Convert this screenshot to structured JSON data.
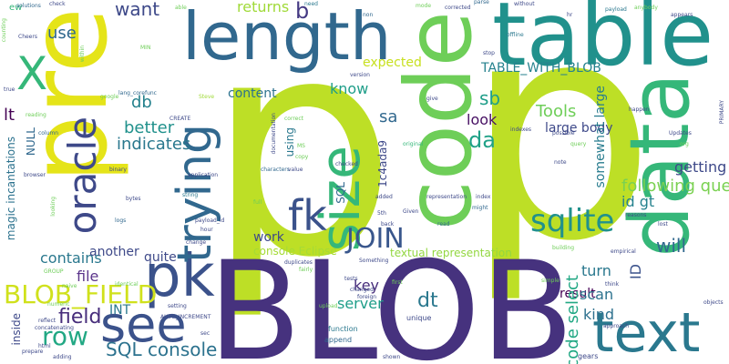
{
  "words": [
    {
      "text": "p",
      "color": "#bddf26"
    },
    {
      "text": "p",
      "color": "#bddf26"
    },
    {
      "text": "BLOB",
      "color": "#46327e"
    },
    {
      "text": "pre",
      "color": "#e5e419"
    },
    {
      "text": "table",
      "color": "#21918c"
    },
    {
      "text": "code",
      "color": "#6ece58"
    },
    {
      "text": "length",
      "color": "#31688e"
    },
    {
      "text": "data",
      "color": "#35b779"
    },
    {
      "text": "text",
      "color": "#2a788e"
    },
    {
      "text": "see",
      "color": "#3b528b"
    },
    {
      "text": "pk",
      "color": "#3b528b"
    },
    {
      "text": "size",
      "color": "#35b779"
    },
    {
      "text": "oracle",
      "color": "#3e4989"
    },
    {
      "text": "trying",
      "color": "#31688e"
    },
    {
      "text": "X",
      "color": "#35b779"
    },
    {
      "text": "fk",
      "color": "#3b528b"
    },
    {
      "text": "sqlite",
      "color": "#21918c"
    },
    {
      "text": "JOIN",
      "color": "#39568c"
    },
    {
      "text": "BLOB_FIELD",
      "color": "#d0e11c"
    },
    {
      "text": "row",
      "color": "#22a884"
    },
    {
      "text": "field",
      "color": "#472d7b"
    },
    {
      "text": "SQL console",
      "color": "#2c728e"
    },
    {
      "text": "want",
      "color": "#3e4989"
    },
    {
      "text": "b",
      "color": "#443983"
    },
    {
      "text": "use",
      "color": "#31688e"
    },
    {
      "text": "db",
      "color": "#26828e"
    },
    {
      "text": "better",
      "color": "#21918c"
    },
    {
      "text": "indicates",
      "color": "#2a788e"
    },
    {
      "text": "content",
      "color": "#2c728e"
    },
    {
      "text": "returns",
      "color": "#a0da39"
    },
    {
      "text": "expected",
      "color": "#c8e020"
    },
    {
      "text": "TABLE_WITH_BLOB",
      "color": "#26828e"
    },
    {
      "text": "know",
      "color": "#1f9e89"
    },
    {
      "text": "sa",
      "color": "#31688e"
    },
    {
      "text": "sb",
      "color": "#1f9e89"
    },
    {
      "text": "da",
      "color": "#1fa187"
    },
    {
      "text": "look",
      "color": "#471063"
    },
    {
      "text": "Tools",
      "color": "#6ece58"
    },
    {
      "text": "large body",
      "color": "#3e4989"
    },
    {
      "text": "somewhat large",
      "color": "#287c8e"
    },
    {
      "text": "getting",
      "color": "#3e4989"
    },
    {
      "text": "following query",
      "color": "#7ad151"
    },
    {
      "text": "id gt",
      "color": "#26828e"
    },
    {
      "text": "will",
      "color": "#31688e"
    },
    {
      "text": "ID",
      "color": "#3b528b"
    },
    {
      "text": "turn",
      "color": "#2a788e"
    },
    {
      "text": "result",
      "color": "#440154"
    },
    {
      "text": "kind",
      "color": "#2d708e"
    },
    {
      "text": "scan",
      "color": "#2c728e"
    },
    {
      "text": "code select",
      "color": "#22a884"
    },
    {
      "text": "dt",
      "color": "#2a788e"
    },
    {
      "text": "server",
      "color": "#1f9e89"
    },
    {
      "text": "key",
      "color": "#472d7b"
    },
    {
      "text": "work",
      "color": "#3e4989"
    },
    {
      "text": "console Eclipse",
      "color": "#a5db36"
    },
    {
      "text": "textual representation",
      "color": "#93d741"
    },
    {
      "text": "contains",
      "color": "#2a788e"
    },
    {
      "text": "another",
      "color": "#3e4989"
    },
    {
      "text": "quite",
      "color": "#3e4989"
    },
    {
      "text": "file",
      "color": "#5b358b"
    },
    {
      "text": "INT",
      "color": "#2a788e"
    },
    {
      "text": "lt",
      "color": "#440154"
    },
    {
      "text": "NULL",
      "color": "#31688e"
    },
    {
      "text": "magic incantations",
      "color": "#2c728e"
    },
    {
      "text": "inside",
      "color": "#3e4989"
    },
    {
      "text": "SQL",
      "color": "#31688e"
    },
    {
      "text": "using",
      "color": "#2a788e"
    },
    {
      "text": "1c4ada9",
      "color": "#3e4989"
    },
    {
      "text": "ew",
      "color": "#35b779"
    },
    {
      "text": "counting",
      "color": "#6ece58"
    },
    {
      "text": "solutions",
      "color": "#31688e"
    },
    {
      "text": "check",
      "color": "#3e4989"
    },
    {
      "text": "able",
      "color": "#6ece58"
    },
    {
      "text": "need",
      "color": "#2a788e"
    },
    {
      "text": "non",
      "color": "#31688e"
    },
    {
      "text": "mode",
      "color": "#6ece58"
    },
    {
      "text": "corrected",
      "color": "#3e4989"
    },
    {
      "text": "parse",
      "color": "#31688e"
    },
    {
      "text": "without",
      "color": "#3e4989"
    },
    {
      "text": "payload",
      "color": "#2a788e"
    },
    {
      "text": "hr",
      "color": "#3e4989"
    },
    {
      "text": "offline",
      "color": "#2a788e"
    },
    {
      "text": "stop",
      "color": "#3e4989"
    },
    {
      "text": "Cheers",
      "color": "#3e4989"
    },
    {
      "text": "MIN",
      "color": "#6ece58"
    },
    {
      "text": "lang_corefunc",
      "color": "#31688e"
    },
    {
      "text": "Steve",
      "color": "#a0da39"
    },
    {
      "text": "CREATE",
      "color": "#3e4989"
    },
    {
      "text": "reading",
      "color": "#6ece58"
    },
    {
      "text": "column",
      "color": "#31688e"
    },
    {
      "text": "binary",
      "color": "#3e4989"
    },
    {
      "text": "application",
      "color": "#3e4989"
    },
    {
      "text": "string",
      "color": "#2a788e"
    },
    {
      "text": "bytes",
      "color": "#3e4989"
    },
    {
      "text": "logs",
      "color": "#31688e"
    },
    {
      "text": "payload_id",
      "color": "#3e4989"
    },
    {
      "text": "MS",
      "color": "#6ece58"
    },
    {
      "text": "characters",
      "color": "#31688e"
    },
    {
      "text": "documentation",
      "color": "#3e4989"
    },
    {
      "text": "give",
      "color": "#3e4989"
    },
    {
      "text": "version",
      "color": "#3e4989"
    },
    {
      "text": "original",
      "color": "#35b779"
    },
    {
      "text": "index",
      "color": "#3e4989"
    },
    {
      "text": "might",
      "color": "#31688e"
    },
    {
      "text": "representation",
      "color": "#3e4989"
    },
    {
      "text": "Given",
      "color": "#3e4989"
    },
    {
      "text": "read",
      "color": "#31688e"
    },
    {
      "text": "back",
      "color": "#3e4989"
    },
    {
      "text": "indexes",
      "color": "#3e4989"
    },
    {
      "text": "possible",
      "color": "#3e4989"
    },
    {
      "text": "query",
      "color": "#6ece58"
    },
    {
      "text": "note",
      "color": "#3e4989"
    },
    {
      "text": "Updates",
      "color": "#3e4989"
    },
    {
      "text": "happen",
      "color": "#3e4989"
    },
    {
      "text": "reasons",
      "color": "#3e4989"
    },
    {
      "text": "lost",
      "color": "#3e4989"
    },
    {
      "text": "building",
      "color": "#6ece58"
    },
    {
      "text": "empirical",
      "color": "#3e4989"
    },
    {
      "text": "think",
      "color": "#3e4989"
    },
    {
      "text": "simple",
      "color": "#6ece58"
    },
    {
      "text": "objects",
      "color": "#3e4989"
    },
    {
      "text": "approach",
      "color": "#3e4989"
    },
    {
      "text": "GROUP",
      "color": "#6ece58"
    },
    {
      "text": "concatenating",
      "color": "#3e4989"
    },
    {
      "text": "adding",
      "color": "#3e4989"
    },
    {
      "text": "setting",
      "color": "#3e4989"
    },
    {
      "text": "AUTO_INCREMENT",
      "color": "#3e4989"
    },
    {
      "text": "sec",
      "color": "#3e4989"
    },
    {
      "text": "function",
      "color": "#2a788e"
    },
    {
      "text": "append",
      "color": "#31688e"
    },
    {
      "text": "unique",
      "color": "#3e4989"
    },
    {
      "text": "duplicates",
      "color": "#3e4989"
    },
    {
      "text": "Something",
      "color": "#3e4989"
    },
    {
      "text": "tests",
      "color": "#3e4989"
    },
    {
      "text": "first",
      "color": "#6ece58"
    },
    {
      "text": "changed",
      "color": "#3e4989"
    },
    {
      "text": "gears",
      "color": "#3e4989"
    },
    {
      "text": "shown",
      "color": "#3e4989"
    },
    {
      "text": "full",
      "color": "#6ece58"
    },
    {
      "text": "added",
      "color": "#3e4989"
    },
    {
      "text": "change",
      "color": "#3e4989"
    },
    {
      "text": "looking",
      "color": "#6ece58"
    },
    {
      "text": "true",
      "color": "#3e4989"
    },
    {
      "text": "PRIMARY",
      "color": "#3e4989"
    },
    {
      "text": "anybody",
      "color": "#6ece58"
    },
    {
      "text": "appears",
      "color": "#3e4989"
    },
    {
      "text": "org",
      "color": "#6ece58"
    },
    {
      "text": "correct",
      "color": "#6ece58"
    },
    {
      "text": "checked",
      "color": "#3e4989"
    },
    {
      "text": "copy",
      "color": "#6ece58"
    },
    {
      "text": "value",
      "color": "#3e4989"
    },
    {
      "text": "5th",
      "color": "#3e4989"
    },
    {
      "text": "hour",
      "color": "#3e4989"
    },
    {
      "text": "google",
      "color": "#6ece58"
    },
    {
      "text": "browser",
      "color": "#3e4989"
    },
    {
      "text": "within",
      "color": "#6ece58"
    },
    {
      "text": "reflect",
      "color": "#3e4989"
    },
    {
      "text": "html",
      "color": "#3e4989"
    },
    {
      "text": "naive",
      "color": "#6ece58"
    },
    {
      "text": "numeric",
      "color": "#6ece58"
    },
    {
      "text": "prepare",
      "color": "#3e4989"
    },
    {
      "text": "identical",
      "color": "#6ece58"
    },
    {
      "text": "upload",
      "color": "#6ece58"
    },
    {
      "text": "foreign",
      "color": "#3e4989"
    },
    {
      "text": "fairly",
      "color": "#6ece58"
    }
  ]
}
